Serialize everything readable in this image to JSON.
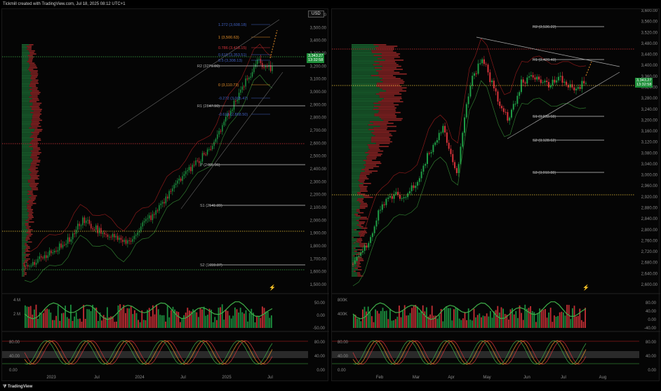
{
  "header": {
    "text": "Tickmill created with TradingView.com, Jul 18, 2025 08:12 UTC+1"
  },
  "footer": {
    "logo_text": "TradingView"
  },
  "currency_button": "USD",
  "colors": {
    "up": "#1f9d45",
    "down": "#d8333a",
    "volume_profile_up": "#1f7a3a",
    "volume_profile_down": "#a82b2b",
    "fib": "#e8912a",
    "pivot": "#c8c8c8"
  },
  "left": {
    "price_axis": [
      "3,600.00",
      "3,500.00",
      "3,400.00",
      "3,300.00",
      "3,200.00",
      "3,100.00",
      "3,000.00",
      "2,900.00",
      "2,800.00",
      "2,700.00",
      "2,600.00",
      "2,500.00",
      "2,400.00",
      "2,300.00",
      "2,200.00",
      "2,100.00",
      "2,000.00",
      "1,900.00",
      "1,800.00",
      "1,700.00",
      "1,600.00",
      "1,500.00"
    ],
    "price_label": "3,343.27",
    "countdown": "13:32:58",
    "time_axis": [
      "2023",
      "Jul",
      "2024",
      "Jul",
      "2025",
      "Jul"
    ],
    "levels": [
      "R2 (3271.06)",
      "R1 (2847.90)",
      "P (2465.96)",
      "S1 (2141.89)",
      "S2 (1659.07)"
    ],
    "fib_levels": [
      "1.272 (3,608.18)",
      "1 (3,500.63)",
      "0.786 (3,418.15)",
      "0.618 (3,353.51)",
      "0.5 (3,308.13)",
      "0 (3,110.73)",
      "-0.272 (3,005.47)",
      "-0.618 (2,868.50)"
    ],
    "volume_axis": [
      "4 M",
      "2 M"
    ],
    "volume_osc_axis": [
      "50.00",
      "0.00",
      "-50.00"
    ],
    "stoch_axis_left": [
      "80.00",
      "40.00",
      "0.00"
    ],
    "stoch_axis_right": [
      "80.00",
      "40.00",
      "0.00"
    ]
  },
  "right": {
    "price_axis": [
      "3,600.00",
      "3,560.00",
      "3,520.00",
      "3,480.00",
      "3,440.00",
      "3,400.00",
      "3,360.00",
      "3,320.00",
      "3,280.00",
      "3,240.00",
      "3,200.00",
      "3,160.00",
      "3,120.00",
      "3,080.00",
      "3,040.00",
      "3,000.00",
      "2,960.00",
      "2,920.00",
      "2,880.00",
      "2,840.00",
      "2,800.00",
      "2,760.00",
      "2,720.00",
      "2,680.00",
      "2,640.00",
      "2,600.00"
    ],
    "price_label": "3,343.27",
    "countdown": "13:32:58",
    "time_axis": [
      "Feb",
      "Mar",
      "Apr",
      "May",
      "Jun",
      "Jul",
      "Aug"
    ],
    "levels": [
      "R2 (3,536.22)",
      "R1 (3,420.48)",
      "S1 (3,233.68)",
      "S2 (3,128.62)",
      "S3 (3,010.88)"
    ],
    "volume_axis": [
      "800K",
      "400K"
    ],
    "volume_osc_axis": [
      "80.00",
      "40.00",
      "0.00",
      "-40.00"
    ],
    "stoch_axis_left": [
      "80.00",
      "40.00",
      "0.00"
    ],
    "stoch_axis_right": [
      "80.00",
      "40.00",
      "0.00"
    ]
  }
}
